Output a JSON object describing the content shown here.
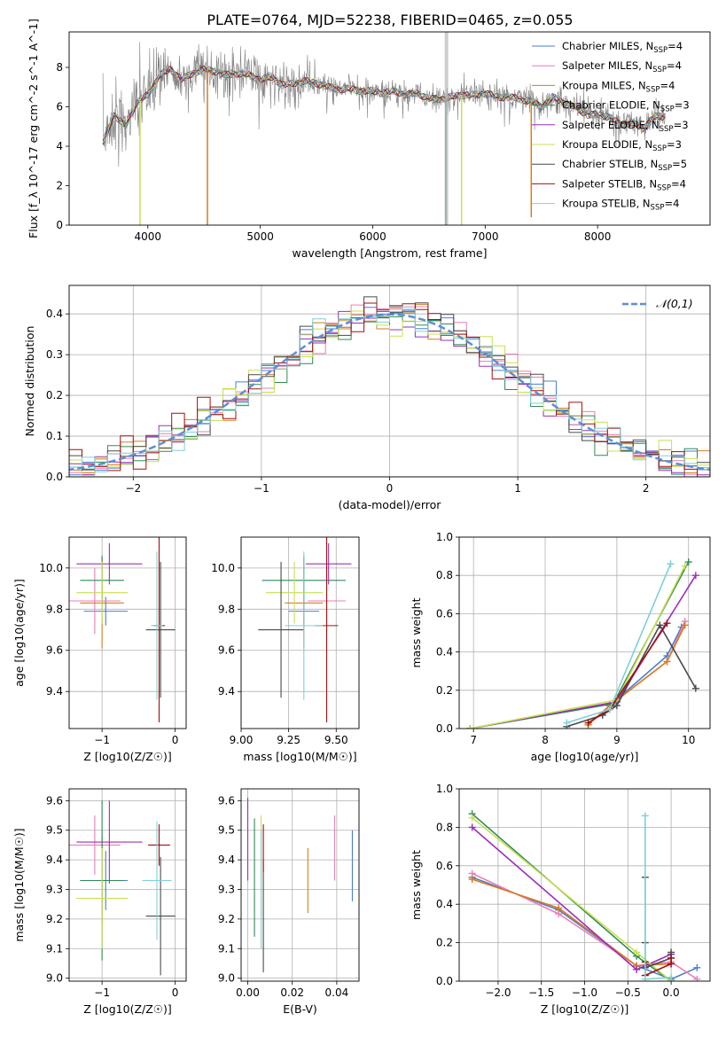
{
  "figure_title": "PLATE=0764, MJD=52238, FIBERID=0465, z=0.055",
  "colors": {
    "spec": "#808080",
    "Chabrier MILES": "#4a7fd0",
    "Salpeter MILES": "#e87fb8",
    "Kroupa MILES": "#d97b1c",
    "Chabrier ELODIE": "#2e8b57",
    "Salpeter ELODIE": "#9a30b8",
    "Kroupa ELODIE": "#c8e050",
    "Chabrier STELIB": "#4a4a4a",
    "Salpeter STELIB": "#a01010",
    "Kroupa STELIB": "#7fd0d8",
    "normal": "#5b8fd6"
  },
  "chart_data": [
    {
      "id": "spectrum",
      "type": "line",
      "title": "PLATE=0764, MJD=52238, FIBERID=0465, z=0.055",
      "xlabel": "wavelength [Angstrom, rest frame]",
      "ylabel": "Flux [f_λ 10^-17 erg cm^-2 s^-1 A^-1]",
      "xlim": [
        3300,
        9000
      ],
      "ylim": [
        0,
        9.8
      ],
      "xticks": [
        4000,
        5000,
        6000,
        7000,
        8000
      ],
      "yticks": [
        0,
        2,
        4,
        6,
        8
      ],
      "legend": {
        "placement": "top-right",
        "entries": [
          "Chabrier MILES, N_SSP=4",
          "Salpeter MILES, N_SSP=4",
          "Kroupa MILES, N_SSP=4",
          "Chabrier ELODIE, N_SSP=3",
          "Salpeter ELODIE, N_SSP=3",
          "Kroupa ELODIE, N_SSP=3",
          "Chabrier STELIB, N_SSP=5",
          "Salpeter STELIB, N_SSP=4",
          "Kroupa STELIB, N_SSP=4"
        ]
      },
      "continuum": {
        "x": [
          3600,
          3700,
          3800,
          3900,
          4000,
          4100,
          4200,
          4300,
          4400,
          4500,
          4600,
          4700,
          4800,
          4900,
          5000,
          5100,
          5200,
          5300,
          5400,
          5500,
          5600,
          5700,
          5800,
          5900,
          6000,
          6100,
          6200,
          6300,
          6400,
          6500,
          6600,
          6700,
          6800,
          6900,
          7000,
          7100,
          7200,
          7300,
          7400,
          7500,
          7600,
          7700,
          7800,
          7900,
          8000,
          8100,
          8200,
          8300,
          8400,
          8500
        ],
        "y": [
          4.2,
          5.6,
          5.0,
          6.2,
          6.6,
          7.6,
          7.9,
          7.4,
          7.7,
          7.9,
          7.8,
          7.6,
          7.7,
          7.6,
          7.4,
          7.5,
          7.1,
          7.2,
          7.3,
          7.2,
          7.0,
          6.9,
          6.9,
          6.8,
          6.8,
          6.7,
          6.8,
          6.6,
          6.7,
          6.4,
          6.4,
          6.5,
          6.6,
          6.6,
          6.7,
          6.5,
          6.5,
          6.4,
          6.3,
          6.0,
          6.5,
          6.2,
          6.0,
          5.6,
          5.6,
          5.5,
          5.1,
          5.2,
          4.9,
          5.5
        ]
      },
      "spikes": [
        {
          "x": 3930,
          "y": 0.0
        },
        {
          "x": 4530,
          "y": 0.0
        },
        {
          "x": 6650,
          "y": 0.0
        },
        {
          "x": 6790,
          "y": 0.0
        },
        {
          "x": 7410,
          "y": 0.4
        }
      ]
    },
    {
      "id": "residuals",
      "type": "line",
      "xlabel": "(data-model)/error",
      "ylabel": "Normed distribution",
      "xlim": [
        -2.5,
        2.5
      ],
      "ylim": [
        0,
        0.47
      ],
      "xticks": [
        -2,
        -1,
        0,
        1,
        2
      ],
      "yticks": [
        0.0,
        0.1,
        0.2,
        0.3,
        0.4
      ],
      "legend": {
        "placement": "top-right",
        "entries": [
          "N(0,1)"
        ]
      }
    },
    {
      "id": "age_vs_Z",
      "type": "scatter",
      "xlabel": "Z [log10(Z/Z☉)]",
      "ylabel": "age [log10(age/yr)]",
      "xlim": [
        -1.45,
        0.15
      ],
      "ylim": [
        9.22,
        10.15
      ],
      "xticks": [
        -1,
        0
      ],
      "yticks": [
        9.4,
        9.6,
        9.8,
        10.0
      ],
      "points": [
        {
          "s": "Chabrier MILES",
          "x": -0.95,
          "y": 9.79,
          "ex": 0.3,
          "ey": 0.07
        },
        {
          "s": "Salpeter MILES",
          "x": -1.1,
          "y": 9.84,
          "ex": 0.35,
          "ey": 0.16
        },
        {
          "s": "Kroupa MILES",
          "x": -1.0,
          "y": 9.83,
          "ex": 0.3,
          "ey": 0.22
        },
        {
          "s": "Chabrier ELODIE",
          "x": -1.0,
          "y": 9.94,
          "ex": 0.3,
          "ey": 0.12
        },
        {
          "s": "Salpeter ELODIE",
          "x": -0.9,
          "y": 10.02,
          "ex": 0.45,
          "ey": 0.1
        },
        {
          "s": "Kroupa ELODIE",
          "x": -1.0,
          "y": 9.88,
          "ex": 0.35,
          "ey": 0.15
        },
        {
          "s": "Chabrier STELIB",
          "x": -0.2,
          "y": 9.7,
          "ex": 0.2,
          "ey": 0.33
        },
        {
          "s": "Salpeter STELIB",
          "x": -0.22,
          "y": 9.72,
          "ex": 0.08,
          "ey": 0.47
        },
        {
          "s": "Kroupa STELIB",
          "x": -0.25,
          "y": 9.72,
          "ex": 0.08,
          "ey": 0.36
        }
      ]
    },
    {
      "id": "age_vs_mass",
      "type": "scatter",
      "xlabel": "mass [log10(M/M☉)]",
      "xlim": [
        9.0,
        9.62
      ],
      "ylim": [
        9.22,
        10.15
      ],
      "xticks": [
        9.0,
        9.25,
        9.5
      ],
      "yticks": [
        9.4,
        9.6,
        9.8,
        10.0
      ],
      "points": [
        {
          "s": "Chabrier MILES",
          "x": 9.33,
          "y": 9.79,
          "ex": 0.08,
          "ey": 0.07
        },
        {
          "s": "Salpeter MILES",
          "x": 9.45,
          "y": 9.84,
          "ex": 0.1,
          "ey": 0.16
        },
        {
          "s": "Kroupa MILES",
          "x": 9.33,
          "y": 9.83,
          "ex": 0.1,
          "ey": 0.22
        },
        {
          "s": "Chabrier ELODIE",
          "x": 9.33,
          "y": 9.94,
          "ex": 0.22,
          "ey": 0.12
        },
        {
          "s": "Salpeter ELODIE",
          "x": 9.46,
          "y": 10.02,
          "ex": 0.12,
          "ey": 0.1
        },
        {
          "s": "Kroupa ELODIE",
          "x": 9.28,
          "y": 9.88,
          "ex": 0.15,
          "ey": 0.15
        },
        {
          "s": "Chabrier STELIB",
          "x": 9.21,
          "y": 9.7,
          "ex": 0.12,
          "ey": 0.33
        },
        {
          "s": "Salpeter STELIB",
          "x": 9.45,
          "y": 9.72,
          "ex": 0.06,
          "ey": 0.47
        },
        {
          "s": "Kroupa STELIB",
          "x": 9.33,
          "y": 9.72,
          "ex": 0.1,
          "ey": 0.36
        }
      ]
    },
    {
      "id": "massweight_vs_age",
      "type": "line",
      "xlabel": "age [log10(age/yr)]",
      "ylabel": "mass weight",
      "xlim": [
        6.8,
        10.3
      ],
      "ylim": [
        0,
        1.0
      ],
      "xticks": [
        7,
        8,
        9,
        10
      ],
      "yticks": [
        0.0,
        0.2,
        0.4,
        0.6,
        0.8,
        1.0
      ],
      "series": [
        {
          "s": "Chabrier MILES",
          "x": [
            8.6,
            8.9,
            9.7,
            9.9
          ],
          "y": [
            0.02,
            0.12,
            0.38,
            0.53
          ]
        },
        {
          "s": "Salpeter MILES",
          "x": [
            8.6,
            8.9,
            9.7,
            9.95
          ],
          "y": [
            0.02,
            0.12,
            0.35,
            0.56
          ]
        },
        {
          "s": "Kroupa MILES",
          "x": [
            8.6,
            8.9,
            9.7,
            9.95
          ],
          "y": [
            0.02,
            0.12,
            0.35,
            0.54
          ]
        },
        {
          "s": "Chabrier ELODIE",
          "x": [
            6.95,
            8.95,
            10.0
          ],
          "y": [
            0.0,
            0.13,
            0.87
          ]
        },
        {
          "s": "Salpeter ELODIE",
          "x": [
            6.95,
            9.0,
            10.1
          ],
          "y": [
            0.0,
            0.14,
            0.8
          ]
        },
        {
          "s": "Kroupa ELODIE",
          "x": [
            6.95,
            9.0,
            9.95
          ],
          "y": [
            0.0,
            0.15,
            0.85
          ]
        },
        {
          "s": "Chabrier STELIB",
          "x": [
            8.3,
            8.8,
            9.0,
            9.6,
            10.1
          ],
          "y": [
            0.01,
            0.07,
            0.12,
            0.54,
            0.21
          ]
        },
        {
          "s": "Salpeter STELIB",
          "x": [
            8.6,
            8.9,
            9.7
          ],
          "y": [
            0.03,
            0.1,
            0.55
          ]
        },
        {
          "s": "Kroupa STELIB",
          "x": [
            8.3,
            8.9,
            9.75
          ],
          "y": [
            0.03,
            0.1,
            0.86
          ]
        }
      ]
    },
    {
      "id": "mass_vs_Z",
      "type": "scatter",
      "xlabel": "Z [log10(Z/Z☉)]",
      "ylabel": "mass [log10(M/M☉)]",
      "xlim": [
        -1.45,
        0.15
      ],
      "ylim": [
        8.99,
        9.64
      ],
      "xticks": [
        -1,
        0
      ],
      "yticks": [
        9.0,
        9.1,
        9.2,
        9.3,
        9.4,
        9.5,
        9.6
      ],
      "points": [
        {
          "s": "Chabrier MILES",
          "x": -0.95,
          "y": 9.33,
          "ex": 0.3,
          "ey": 0.1
        },
        {
          "s": "Salpeter MILES",
          "x": -1.1,
          "y": 9.45,
          "ex": 0.35,
          "ey": 0.1
        },
        {
          "s": "Kroupa MILES",
          "x": -1.0,
          "y": 9.33,
          "ex": 0.3,
          "ey": 0.15
        },
        {
          "s": "Chabrier ELODIE",
          "x": -1.0,
          "y": 9.33,
          "ex": 0.3,
          "ey": 0.27
        },
        {
          "s": "Salpeter ELODIE",
          "x": -0.9,
          "y": 9.46,
          "ex": 0.45,
          "ey": 0.14
        },
        {
          "s": "Kroupa ELODIE",
          "x": -1.0,
          "y": 9.27,
          "ex": 0.35,
          "ey": 0.17
        },
        {
          "s": "Chabrier STELIB",
          "x": -0.2,
          "y": 9.21,
          "ex": 0.2,
          "ey": 0.2
        },
        {
          "s": "Salpeter STELIB",
          "x": -0.22,
          "y": 9.45,
          "ex": 0.15,
          "ey": 0.07
        },
        {
          "s": "Kroupa STELIB",
          "x": -0.25,
          "y": 9.33,
          "ex": 0.2,
          "ey": 0.2
        }
      ]
    },
    {
      "id": "mass_vs_EBV",
      "type": "scatter",
      "xlabel": "E(B-V)",
      "xlim": [
        -0.003,
        0.05
      ],
      "ylim": [
        8.99,
        9.64
      ],
      "xticks": [
        0.0,
        0.02,
        0.04
      ],
      "yticks": [
        9.0,
        9.1,
        9.2,
        9.3,
        9.4,
        9.5,
        9.6
      ],
      "points": [
        {
          "s": "Chabrier MILES",
          "x": 0.047,
          "y": 9.38,
          "ex": 0,
          "ey": 0.12
        },
        {
          "s": "Salpeter MILES",
          "x": 0.039,
          "y": 9.44,
          "ex": 0,
          "ey": 0.11
        },
        {
          "s": "Kroupa MILES",
          "x": 0.027,
          "y": 9.33,
          "ex": 0,
          "ey": 0.11
        },
        {
          "s": "Chabrier ELODIE",
          "x": 0.003,
          "y": 9.34,
          "ex": 0,
          "ey": 0.2
        },
        {
          "s": "Salpeter ELODIE",
          "x": 0.0,
          "y": 9.47,
          "ex": 0,
          "ey": 0.14
        },
        {
          "s": "Kroupa ELODIE",
          "x": 0.006,
          "y": 9.38,
          "ex": 0,
          "ey": 0.17
        },
        {
          "s": "Chabrier STELIB",
          "x": 0.007,
          "y": 9.21,
          "ex": 0,
          "ey": 0.19
        },
        {
          "s": "Salpeter STELIB",
          "x": 0.007,
          "y": 9.44,
          "ex": 0,
          "ey": 0.08
        },
        {
          "s": "Kroupa STELIB",
          "x": 0.006,
          "y": 9.3,
          "ex": 0,
          "ey": 0.2
        }
      ]
    },
    {
      "id": "massweight_vs_Z",
      "type": "line",
      "xlabel": "Z [log10(Z/Z☉)]",
      "ylabel": "mass weight",
      "xlim": [
        -2.45,
        0.45
      ],
      "ylim": [
        0,
        1.0
      ],
      "xticks": [
        -2.0,
        -1.5,
        -1.0,
        -0.5,
        0.0
      ],
      "yticks": [
        0.0,
        0.2,
        0.4,
        0.6,
        0.8,
        1.0
      ],
      "series": [
        {
          "s": "Chabrier MILES",
          "x": [
            -2.3,
            -1.3,
            -0.4,
            0.0,
            0.3
          ],
          "y": [
            0.54,
            0.37,
            0.08,
            0.01,
            0.07
          ]
        },
        {
          "s": "Salpeter MILES",
          "x": [
            -2.3,
            -1.3,
            -0.4,
            0.0,
            0.3
          ],
          "y": [
            0.56,
            0.35,
            0.08,
            0.1,
            0.01
          ]
        },
        {
          "s": "Kroupa MILES",
          "x": [
            -2.3,
            -1.3,
            -0.4,
            0.0
          ],
          "y": [
            0.53,
            0.38,
            0.08,
            0.09
          ]
        },
        {
          "s": "Chabrier ELODIE",
          "x": [
            -2.3,
            -0.4,
            0.0
          ],
          "y": [
            0.87,
            0.13,
            0.0
          ]
        },
        {
          "s": "Salpeter ELODIE",
          "x": [
            -2.3,
            -0.4,
            0.0
          ],
          "y": [
            0.8,
            0.06,
            0.14
          ]
        },
        {
          "s": "Kroupa ELODIE",
          "x": [
            -2.3,
            -0.4,
            0.0
          ],
          "y": [
            0.85,
            0.15,
            0.0
          ]
        },
        {
          "s": "Chabrier STELIB",
          "x": [
            -0.3,
            -0.3,
            -0.3,
            0.0,
            0.0
          ],
          "y": [
            0.2,
            0.54,
            0.07,
            0.12,
            0.15
          ]
        },
        {
          "s": "Salpeter STELIB",
          "x": [
            -0.3,
            -0.3,
            0.0,
            0.0
          ],
          "y": [
            0.1,
            0.03,
            0.09,
            0.12
          ]
        },
        {
          "s": "Kroupa STELIB",
          "x": [
            -0.3,
            -0.3,
            0.0
          ],
          "y": [
            0.86,
            0.01,
            0.02
          ]
        }
      ]
    }
  ]
}
